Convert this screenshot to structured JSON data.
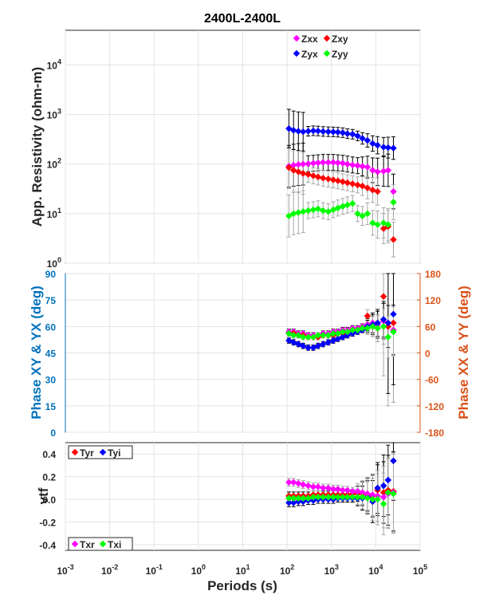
{
  "chart_data": [
    {
      "type": "scatter",
      "title": "2400L-2400L",
      "ylabel": "App. Resistivity (ohm-m)",
      "xscale": "log",
      "yscale": "log",
      "xlim": [
        0.001,
        100000
      ],
      "ylim": [
        1,
        50000
      ],
      "ytick_labels": [
        "10",
        "10",
        "10",
        "10",
        "10"
      ],
      "ytick_exponents": [
        "0",
        "1",
        "2",
        "3",
        "4"
      ],
      "grid": true,
      "legend": "top-right",
      "series": [
        {
          "name": "Zxx",
          "color": "#ff00ff",
          "x": [
            110,
            140,
            180,
            230,
            300,
            390,
            500,
            650,
            850,
            1100,
            1400,
            1800,
            2300,
            3000,
            3900,
            5000,
            6500,
            8500,
            11000,
            15000,
            19000,
            25000
          ],
          "y": [
            90,
            95,
            98,
            100,
            102,
            104,
            106,
            108,
            108,
            108,
            106,
            104,
            100,
            96,
            93,
            90,
            87,
            75,
            70,
            72,
            75,
            28
          ]
        },
        {
          "name": "Zxy",
          "color": "#ff0000",
          "x": [
            110,
            140,
            180,
            230,
            300,
            390,
            500,
            650,
            850,
            1100,
            1400,
            1800,
            2300,
            3000,
            3900,
            5000,
            6500,
            8500,
            11000,
            15000,
            19000,
            25000
          ],
          "y": [
            85,
            75,
            70,
            65,
            62,
            58,
            55,
            52,
            50,
            48,
            46,
            44,
            42,
            40,
            38,
            36,
            33,
            30,
            28,
            5,
            5.5,
            3
          ]
        },
        {
          "name": "Zyx",
          "color": "#0000ff",
          "x": [
            110,
            140,
            180,
            230,
            300,
            390,
            500,
            650,
            850,
            1100,
            1400,
            1800,
            2300,
            3000,
            3900,
            5000,
            6500,
            8500,
            11000,
            15000,
            19000,
            25000
          ],
          "y": [
            520,
            480,
            460,
            450,
            460,
            470,
            465,
            455,
            450,
            445,
            440,
            430,
            410,
            400,
            370,
            330,
            300,
            260,
            240,
            220,
            215,
            210
          ]
        },
        {
          "name": "Zyy",
          "color": "#00ff00",
          "x": [
            110,
            140,
            180,
            230,
            300,
            390,
            500,
            650,
            850,
            1100,
            1400,
            1800,
            2300,
            3000,
            3900,
            5000,
            6500,
            8500,
            11000,
            15000,
            19000,
            25000
          ],
          "y": [
            9,
            10,
            10.5,
            11,
            11.5,
            12,
            12.5,
            11.5,
            11,
            12,
            13,
            14,
            15,
            16,
            10,
            9,
            10,
            6.5,
            6,
            6.5,
            6,
            17
          ]
        }
      ]
    },
    {
      "type": "scatter",
      "ylabel": "Phase XY & YX (deg)",
      "ylabel_right": "Phase XX & YY (deg)",
      "xscale": "log",
      "xlim": [
        0.001,
        100000
      ],
      "ylim": [
        0,
        90
      ],
      "ylim_right": [
        -180,
        180
      ],
      "yticks": [
        "0",
        "15",
        "30",
        "45",
        "60",
        "75",
        "90"
      ],
      "yticks_right": [
        "-180",
        "-120",
        "-60",
        "0",
        "60",
        "120",
        "180"
      ],
      "left_color": "#0072bd",
      "right_color": "#d95319",
      "grid": true,
      "series": [
        {
          "name": "Zxx",
          "color": "#ff00ff",
          "axis": "left",
          "x": [
            110,
            140,
            180,
            230,
            300,
            390,
            500,
            650,
            850,
            1100,
            1400,
            1800,
            2300,
            3000,
            3900,
            5000,
            6500,
            8500,
            11000,
            15000,
            19000,
            25000
          ],
          "y": [
            57,
            57,
            56,
            56,
            55,
            55,
            55,
            56,
            56,
            57,
            57,
            58,
            58,
            59,
            59,
            60,
            61,
            62,
            61,
            63,
            60,
            58
          ]
        },
        {
          "name": "Zxy",
          "color": "#ff0000",
          "axis": "left",
          "x": [
            110,
            140,
            180,
            230,
            300,
            390,
            500,
            650,
            850,
            1100,
            1400,
            1800,
            2300,
            3000,
            3900,
            5000,
            6500,
            8500,
            11000,
            15000,
            19000,
            25000
          ],
          "y": [
            56,
            56,
            55,
            55,
            54,
            54,
            54,
            55,
            55,
            55,
            56,
            56,
            57,
            57,
            58,
            59,
            66,
            60,
            59,
            77,
            60,
            62
          ]
        },
        {
          "name": "Zyx",
          "color": "#0000ff",
          "axis": "left",
          "x": [
            110,
            140,
            180,
            230,
            300,
            390,
            500,
            650,
            850,
            1100,
            1400,
            1800,
            2300,
            3000,
            3900,
            5000,
            6500,
            8500,
            11000,
            15000,
            19000,
            25000
          ],
          "y": [
            52,
            51,
            50,
            49,
            48,
            48,
            49,
            50,
            51,
            52,
            53,
            54,
            55,
            56,
            57,
            58,
            60,
            61,
            62,
            64,
            62,
            67
          ]
        },
        {
          "name": "Zyy",
          "color": "#00ff00",
          "axis": "left",
          "x": [
            110,
            140,
            180,
            230,
            300,
            390,
            500,
            650,
            850,
            1100,
            1400,
            1800,
            2300,
            3000,
            3900,
            5000,
            6500,
            8500,
            11000,
            15000,
            19000,
            25000
          ],
          "y": [
            56,
            55,
            55,
            54,
            54,
            54,
            55,
            55,
            55,
            56,
            56,
            57,
            57,
            58,
            58,
            59,
            59,
            60,
            59,
            60,
            54,
            57
          ]
        }
      ]
    },
    {
      "type": "scatter",
      "xlabel": "Periods (s)",
      "ylabel": "vtf",
      "xscale": "log",
      "xlim": [
        0.001,
        100000
      ],
      "ylim": [
        -0.45,
        0.5
      ],
      "xtick_labels": [
        "10",
        "10",
        "10",
        "10",
        "10",
        "10",
        "10",
        "10",
        "10"
      ],
      "xtick_exponents": [
        "-3",
        "-2",
        "-1",
        "0",
        "1",
        "2",
        "3",
        "4",
        "5"
      ],
      "yticks": [
        "-0.4",
        "-0.2",
        "0.0",
        "0.2",
        "0.4"
      ],
      "grid": true,
      "legend": "top-left / bottom-left",
      "series": [
        {
          "name": "Tyr",
          "color": "#ff0000",
          "x": [
            110,
            140,
            180,
            230,
            300,
            390,
            500,
            650,
            850,
            1100,
            1400,
            1800,
            2300,
            3000,
            3900,
            5000,
            6500,
            8500,
            11000,
            15000,
            19000,
            25000
          ],
          "y": [
            0.03,
            0.03,
            0.03,
            0.03,
            0.03,
            0.04,
            0.04,
            0.04,
            0.04,
            0.04,
            0.04,
            0.04,
            0.04,
            0.05,
            0.05,
            0.05,
            0.04,
            0.03,
            0.08,
            0.06,
            0.08,
            0.07
          ]
        },
        {
          "name": "Tyi",
          "color": "#0000ff",
          "x": [
            110,
            140,
            180,
            230,
            300,
            390,
            500,
            650,
            850,
            1100,
            1400,
            1800,
            2300,
            3000,
            3900,
            5000,
            6500,
            8500,
            11000,
            15000,
            19000,
            25000
          ],
          "y": [
            -0.03,
            -0.03,
            -0.02,
            -0.02,
            -0.01,
            -0.01,
            0.0,
            0.0,
            0.0,
            0.0,
            0.01,
            0.01,
            0.01,
            0.01,
            0.01,
            0.01,
            0.02,
            -0.02,
            0.1,
            0.12,
            0.17,
            0.34
          ]
        },
        {
          "name": "Txr",
          "color": "#ff00ff",
          "x": [
            110,
            140,
            180,
            230,
            300,
            390,
            500,
            650,
            850,
            1100,
            1400,
            1800,
            2300,
            3000,
            3900,
            5000,
            6500,
            8500,
            11000,
            15000,
            19000,
            25000
          ],
          "y": [
            0.15,
            0.15,
            0.14,
            0.13,
            0.12,
            0.11,
            0.11,
            0.1,
            0.1,
            0.09,
            0.09,
            0.08,
            0.08,
            0.07,
            0.07,
            0.06,
            0.05,
            0.04,
            0.03,
            0.02,
            0.05,
            0.06
          ]
        },
        {
          "name": "Txi",
          "color": "#00ff00",
          "x": [
            110,
            140,
            180,
            230,
            300,
            390,
            500,
            650,
            850,
            1100,
            1400,
            1800,
            2300,
            3000,
            3900,
            5000,
            6500,
            8500,
            11000,
            15000,
            19000,
            25000
          ],
          "y": [
            0.01,
            0.01,
            0.01,
            0.01,
            0.01,
            0.02,
            0.02,
            0.02,
            0.02,
            0.02,
            0.02,
            0.02,
            0.02,
            0.02,
            0.02,
            0.02,
            0.01,
            0.0,
            0.0,
            -0.04,
            0.06,
            0.05
          ]
        }
      ]
    }
  ]
}
